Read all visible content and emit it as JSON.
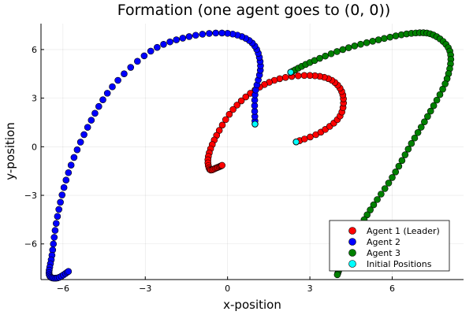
{
  "chart_data": {
    "type": "scatter",
    "title": "Formation (one agent goes to (0, 0))",
    "xlabel": "x-position",
    "ylabel": "y-position",
    "xlim": [
      -6.8,
      8.6
    ],
    "ylim": [
      -8.2,
      7.6
    ],
    "xticks": [
      {
        "value": -6,
        "label": "−6"
      },
      {
        "value": -3,
        "label": "−3"
      },
      {
        "value": 0,
        "label": "0"
      },
      {
        "value": 3,
        "label": "3"
      },
      {
        "value": 6,
        "label": "6"
      }
    ],
    "yticks": [
      {
        "value": -6,
        "label": "−6"
      },
      {
        "value": -3,
        "label": "−3"
      },
      {
        "value": 0,
        "label": "0"
      },
      {
        "value": 3,
        "label": "3"
      },
      {
        "value": 6,
        "label": "6"
      }
    ],
    "grid": true,
    "legend_position": "bottom-right",
    "series": [
      {
        "name": "Agent 1 (Leader)",
        "color": "#ff0000",
        "waypoints": [
          [
            2.5,
            0.3
          ],
          [
            3.4,
            0.9
          ],
          [
            4.1,
            1.9
          ],
          [
            4.2,
            3.2
          ],
          [
            3.8,
            4.1
          ],
          [
            3.0,
            4.4
          ],
          [
            1.9,
            4.2
          ],
          [
            1.0,
            3.5
          ],
          [
            0.2,
            2.3
          ],
          [
            -0.4,
            0.7
          ],
          [
            -0.7,
            -0.6
          ],
          [
            -0.65,
            -1.4
          ],
          [
            -0.4,
            -1.3
          ],
          [
            -0.2,
            -1.15
          ]
        ],
        "points_per_segment": 5
      },
      {
        "name": "Agent 2",
        "color": "#0000ff",
        "waypoints": [
          [
            1.0,
            1.4
          ],
          [
            1.0,
            3.2
          ],
          [
            1.2,
            5.0
          ],
          [
            0.9,
            6.4
          ],
          [
            0.0,
            7.0
          ],
          [
            -1.4,
            6.8
          ],
          [
            -2.8,
            5.9
          ],
          [
            -4.2,
            3.7
          ],
          [
            -5.1,
            1.2
          ],
          [
            -5.8,
            -1.6
          ],
          [
            -6.2,
            -4.3
          ],
          [
            -6.4,
            -6.7
          ],
          [
            -6.5,
            -7.9
          ],
          [
            -6.2,
            -8.1
          ],
          [
            -5.8,
            -7.7
          ]
        ],
        "points_per_segment": 6
      },
      {
        "name": "Agent 3",
        "color": "#008000",
        "waypoints": [
          [
            2.3,
            4.6
          ],
          [
            3.0,
            5.2
          ],
          [
            4.2,
            6.0
          ],
          [
            5.5,
            6.6
          ],
          [
            6.7,
            7.0
          ],
          [
            7.5,
            6.9
          ],
          [
            8.1,
            5.9
          ],
          [
            8.0,
            4.2
          ],
          [
            7.4,
            2.2
          ],
          [
            6.7,
            0.2
          ],
          [
            6.0,
            -1.9
          ],
          [
            5.2,
            -3.9
          ],
          [
            4.6,
            -5.6
          ],
          [
            4.2,
            -7.0
          ],
          [
            4.0,
            -7.9
          ]
        ],
        "points_per_segment": 6
      },
      {
        "name": "Initial Positions",
        "color": "#00ffff",
        "points": [
          [
            2.5,
            0.3
          ],
          [
            1.0,
            1.4
          ],
          [
            2.3,
            4.6
          ]
        ]
      }
    ],
    "legend": [
      {
        "label": "Agent 1 (Leader)",
        "color": "#ff0000"
      },
      {
        "label": "Agent 2",
        "color": "#0000ff"
      },
      {
        "label": "Agent 3",
        "color": "#008000"
      },
      {
        "label": "Initial Positions",
        "color": "#00ffff"
      }
    ]
  }
}
